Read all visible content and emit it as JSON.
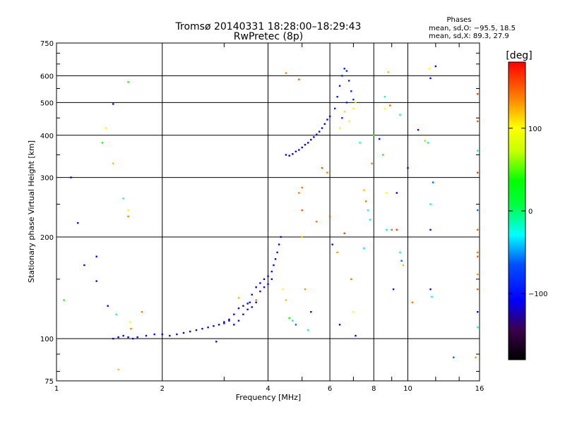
{
  "chart_data": {
    "type": "scatter",
    "title": "Tromsø 20140331 18:28:00–18:29:43",
    "subtitle": "RwPretec (8p)",
    "xlabel": "Frequency [MHz]",
    "ylabel": "Stationary phase Virtual Height [km]",
    "x_scale": "log",
    "y_scale": "log",
    "xlim": [
      1,
      16
    ],
    "ylim": [
      75,
      750
    ],
    "x_ticks": [
      1,
      2,
      4,
      6,
      8,
      10,
      16
    ],
    "x_tick_labels": [
      "1",
      "2",
      "4",
      "6",
      "8",
      "10",
      "16"
    ],
    "y_ticks": [
      75,
      100,
      200,
      300,
      400,
      500,
      600,
      750
    ],
    "y_tick_labels": [
      "75",
      "100",
      "200",
      "300",
      "400",
      "500",
      "600",
      "750"
    ],
    "grid": true,
    "stats": {
      "header": "Phases",
      "line_o": "mean, sd,O: −95.5, 18.5",
      "line_x": "mean, sd,X:  89.3, 27.9"
    },
    "colorbar": {
      "label": "[deg]",
      "range": [
        -180,
        180
      ],
      "ticks": [
        100,
        0,
        -100
      ],
      "tick_labels": [
        "100",
        "0",
        "−100"
      ]
    },
    "traces": [
      {
        "name": "E-trace",
        "phase": -110,
        "points": [
          [
            1.45,
            100
          ],
          [
            1.5,
            101
          ],
          [
            1.55,
            102
          ],
          [
            1.6,
            101
          ],
          [
            1.65,
            100
          ],
          [
            1.7,
            101
          ],
          [
            1.8,
            102
          ],
          [
            1.9,
            103
          ],
          [
            2.0,
            103
          ],
          [
            2.1,
            102
          ],
          [
            2.2,
            103
          ],
          [
            2.3,
            104
          ],
          [
            2.4,
            105
          ],
          [
            2.5,
            106
          ],
          [
            2.6,
            107
          ],
          [
            2.7,
            108
          ],
          [
            2.8,
            109
          ],
          [
            2.9,
            110
          ],
          [
            3.0,
            111
          ],
          [
            3.1,
            113
          ]
        ]
      },
      {
        "name": "F1-trace",
        "phase": -110,
        "points": [
          [
            3.0,
            112
          ],
          [
            3.1,
            114
          ],
          [
            3.2,
            118
          ],
          [
            3.3,
            123
          ],
          [
            3.4,
            125
          ],
          [
            3.5,
            127
          ],
          [
            3.55,
            128
          ],
          [
            3.6,
            135
          ],
          [
            3.7,
            142
          ],
          [
            3.8,
            146
          ],
          [
            3.9,
            150
          ],
          [
            4.0,
            153
          ],
          [
            4.1,
            158
          ],
          [
            4.15,
            165
          ],
          [
            4.2,
            172
          ],
          [
            4.25,
            180
          ],
          [
            4.3,
            190
          ],
          [
            4.35,
            200
          ]
        ]
      },
      {
        "name": "F1-x-trace",
        "phase": -105,
        "points": [
          [
            3.2,
            110
          ],
          [
            3.3,
            113
          ],
          [
            3.4,
            118
          ],
          [
            3.5,
            122
          ],
          [
            3.6,
            124
          ],
          [
            3.7,
            128
          ],
          [
            3.8,
            138
          ],
          [
            3.9,
            142
          ],
          [
            4.0,
            145
          ],
          [
            4.1,
            150
          ]
        ]
      },
      {
        "name": "F2-trace",
        "phase": -110,
        "points": [
          [
            4.5,
            350
          ],
          [
            4.6,
            348
          ],
          [
            4.7,
            352
          ],
          [
            4.8,
            358
          ],
          [
            4.9,
            362
          ],
          [
            5.0,
            368
          ],
          [
            5.1,
            375
          ],
          [
            5.2,
            380
          ],
          [
            5.3,
            388
          ],
          [
            5.4,
            395
          ],
          [
            5.5,
            402
          ],
          [
            5.6,
            410
          ],
          [
            5.7,
            420
          ],
          [
            5.8,
            432
          ],
          [
            5.9,
            445
          ],
          [
            6.0,
            455
          ]
        ]
      },
      {
        "name": "F2-cusp",
        "phase": -95,
        "points": [
          [
            6.2,
            480
          ],
          [
            6.3,
            520
          ],
          [
            6.4,
            560
          ],
          [
            6.5,
            600
          ],
          [
            6.6,
            630
          ],
          [
            6.7,
            620
          ],
          [
            6.8,
            580
          ],
          [
            6.9,
            540
          ],
          [
            7.0,
            510
          ],
          [
            6.5,
            450
          ],
          [
            6.6,
            470
          ],
          [
            6.7,
            500
          ]
        ]
      },
      {
        "name": "F2-x-cusp",
        "phase": 90,
        "points": [
          [
            6.6,
            470
          ],
          [
            6.8,
            440
          ],
          [
            7.0,
            480
          ],
          [
            7.1,
            500
          ],
          [
            6.4,
            420
          ]
        ]
      }
    ],
    "scatter": [
      {
        "x": 1.05,
        "y": 130,
        "phase": 40
      },
      {
        "x": 1.1,
        "y": 300,
        "phase": -110
      },
      {
        "x": 1.15,
        "y": 220,
        "phase": -110
      },
      {
        "x": 1.2,
        "y": 165,
        "phase": -110
      },
      {
        "x": 1.3,
        "y": 175,
        "phase": -110
      },
      {
        "x": 1.3,
        "y": 148,
        "phase": -110
      },
      {
        "x": 1.35,
        "y": 380,
        "phase": 40
      },
      {
        "x": 1.38,
        "y": 420,
        "phase": 100
      },
      {
        "x": 1.4,
        "y": 125,
        "phase": -110
      },
      {
        "x": 1.45,
        "y": 495,
        "phase": -110
      },
      {
        "x": 1.45,
        "y": 330,
        "phase": 120
      },
      {
        "x": 1.48,
        "y": 118,
        "phase": -20
      },
      {
        "x": 1.55,
        "y": 260,
        "phase": -20
      },
      {
        "x": 1.6,
        "y": 575,
        "phase": 40
      },
      {
        "x": 1.6,
        "y": 240,
        "phase": 100
      },
      {
        "x": 1.6,
        "y": 230,
        "phase": 140
      },
      {
        "x": 1.62,
        "y": 112,
        "phase": 100
      },
      {
        "x": 1.63,
        "y": 107,
        "phase": 140
      },
      {
        "x": 1.5,
        "y": 81,
        "phase": 120
      },
      {
        "x": 1.75,
        "y": 120,
        "phase": 140
      },
      {
        "x": 2.85,
        "y": 98,
        "phase": -110
      },
      {
        "x": 3.3,
        "y": 132,
        "phase": 120
      },
      {
        "x": 3.7,
        "y": 130,
        "phase": 140
      },
      {
        "x": 4.5,
        "y": 611,
        "phase": 140
      },
      {
        "x": 4.9,
        "y": 585,
        "phase": 150
      },
      {
        "x": 4.4,
        "y": 140,
        "phase": 100
      },
      {
        "x": 4.5,
        "y": 130,
        "phase": 120
      },
      {
        "x": 4.6,
        "y": 115,
        "phase": 40
      },
      {
        "x": 4.7,
        "y": 113,
        "phase": -20
      },
      {
        "x": 4.8,
        "y": 110,
        "phase": -60
      },
      {
        "x": 4.9,
        "y": 270,
        "phase": 140
      },
      {
        "x": 5.0,
        "y": 280,
        "phase": 140
      },
      {
        "x": 5.0,
        "y": 240,
        "phase": 150
      },
      {
        "x": 5.0,
        "y": 200,
        "phase": 120
      },
      {
        "x": 5.1,
        "y": 140,
        "phase": 130
      },
      {
        "x": 5.2,
        "y": 106,
        "phase": -20
      },
      {
        "x": 5.3,
        "y": 120,
        "phase": -110
      },
      {
        "x": 5.5,
        "y": 222,
        "phase": 140
      },
      {
        "x": 5.7,
        "y": 320,
        "phase": 150
      },
      {
        "x": 5.9,
        "y": 310,
        "phase": 140
      },
      {
        "x": 6.0,
        "y": 230,
        "phase": 150
      },
      {
        "x": 6.1,
        "y": 190,
        "phase": -110
      },
      {
        "x": 6.3,
        "y": 180,
        "phase": 130
      },
      {
        "x": 6.4,
        "y": 110,
        "phase": -110
      },
      {
        "x": 6.6,
        "y": 205,
        "phase": 160
      },
      {
        "x": 6.9,
        "y": 150,
        "phase": 140
      },
      {
        "x": 7.0,
        "y": 120,
        "phase": 100
      },
      {
        "x": 7.1,
        "y": 102,
        "phase": -110
      },
      {
        "x": 7.3,
        "y": 380,
        "phase": -20
      },
      {
        "x": 7.5,
        "y": 275,
        "phase": 120
      },
      {
        "x": 7.5,
        "y": 185,
        "phase": -20
      },
      {
        "x": 7.6,
        "y": 255,
        "phase": 140
      },
      {
        "x": 7.7,
        "y": 240,
        "phase": -20
      },
      {
        "x": 7.8,
        "y": 225,
        "phase": -20
      },
      {
        "x": 7.9,
        "y": 330,
        "phase": 140
      },
      {
        "x": 8.0,
        "y": 400,
        "phase": 40
      },
      {
        "x": 8.3,
        "y": 390,
        "phase": -110
      },
      {
        "x": 8.5,
        "y": 350,
        "phase": 40
      },
      {
        "x": 8.6,
        "y": 480,
        "phase": 100
      },
      {
        "x": 8.6,
        "y": 520,
        "phase": -20
      },
      {
        "x": 8.7,
        "y": 270,
        "phase": 100
      },
      {
        "x": 8.7,
        "y": 210,
        "phase": -20
      },
      {
        "x": 8.8,
        "y": 615,
        "phase": 120
      },
      {
        "x": 8.9,
        "y": 490,
        "phase": 150
      },
      {
        "x": 9.0,
        "y": 210,
        "phase": 150
      },
      {
        "x": 9.1,
        "y": 140,
        "phase": -110
      },
      {
        "x": 9.3,
        "y": 270,
        "phase": -110
      },
      {
        "x": 9.3,
        "y": 210,
        "phase": 160
      },
      {
        "x": 9.5,
        "y": 460,
        "phase": -20
      },
      {
        "x": 9.5,
        "y": 180,
        "phase": -20
      },
      {
        "x": 9.6,
        "y": 170,
        "phase": -60
      },
      {
        "x": 9.7,
        "y": 165,
        "phase": 120
      },
      {
        "x": 10.0,
        "y": 320,
        "phase": -110
      },
      {
        "x": 10.3,
        "y": 128,
        "phase": 140
      },
      {
        "x": 10.7,
        "y": 415,
        "phase": -110
      },
      {
        "x": 11.2,
        "y": 385,
        "phase": 120
      },
      {
        "x": 11.4,
        "y": 380,
        "phase": -20
      },
      {
        "x": 11.5,
        "y": 630,
        "phase": 100
      },
      {
        "x": 11.6,
        "y": 250,
        "phase": -20
      },
      {
        "x": 11.6,
        "y": 210,
        "phase": -110
      },
      {
        "x": 11.6,
        "y": 140,
        "phase": -110
      },
      {
        "x": 11.6,
        "y": 590,
        "phase": -110
      },
      {
        "x": 11.7,
        "y": 133,
        "phase": -20
      },
      {
        "x": 11.8,
        "y": 290,
        "phase": -60
      },
      {
        "x": 12.0,
        "y": 640,
        "phase": -110
      },
      {
        "x": 13.5,
        "y": 88,
        "phase": -60
      },
      {
        "x": 15.6,
        "y": 88,
        "phase": 130
      },
      {
        "x": 15.8,
        "y": 530,
        "phase": 160
      },
      {
        "x": 15.8,
        "y": 440,
        "phase": 150
      },
      {
        "x": 15.8,
        "y": 360,
        "phase": -20
      },
      {
        "x": 15.8,
        "y": 310,
        "phase": 160
      },
      {
        "x": 15.8,
        "y": 240,
        "phase": -60
      },
      {
        "x": 15.8,
        "y": 210,
        "phase": 150
      },
      {
        "x": 15.8,
        "y": 180,
        "phase": 140
      },
      {
        "x": 15.8,
        "y": 175,
        "phase": 150
      },
      {
        "x": 15.8,
        "y": 155,
        "phase": 130
      },
      {
        "x": 15.8,
        "y": 140,
        "phase": 150
      },
      {
        "x": 15.8,
        "y": 120,
        "phase": -110
      },
      {
        "x": 15.8,
        "y": 108,
        "phase": -20
      }
    ]
  }
}
